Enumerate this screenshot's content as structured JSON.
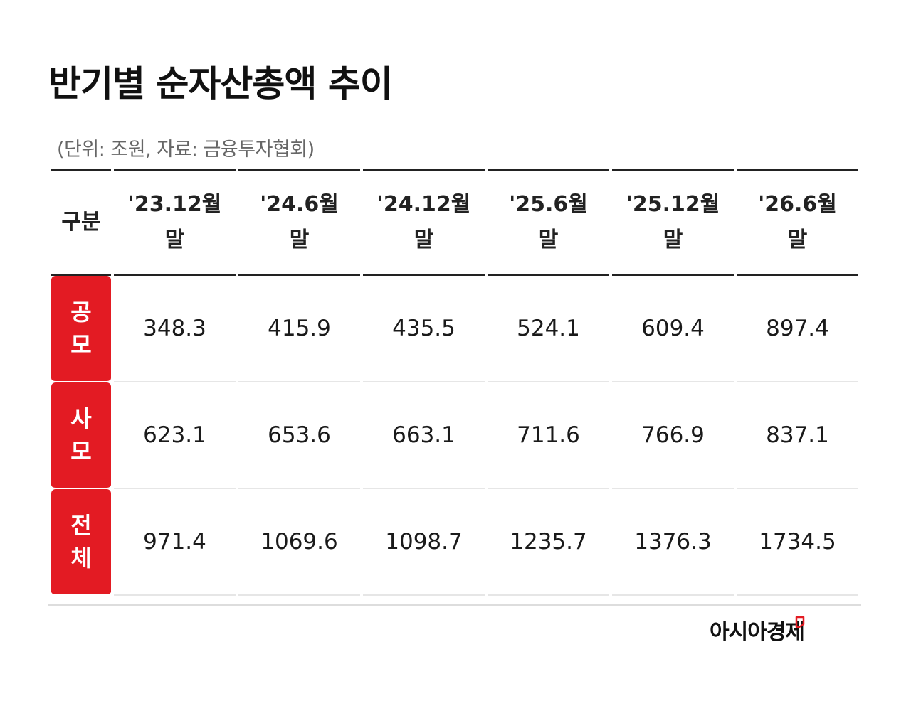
{
  "title": "반기별 순자산총액 추이",
  "unit_note": "(단위: 조원, 자료: 금융투자협회)",
  "colors": {
    "accent": "#e31b23",
    "text": "#111111",
    "muted": "#666666"
  },
  "brand": {
    "name": "아시아경제"
  },
  "chart_data": {
    "type": "table",
    "title": "반기별 순자산총액 추이",
    "corner_label": "구분",
    "columns": [
      {
        "line1": "'23.12월",
        "line2": "말"
      },
      {
        "line1": "'24.6월",
        "line2": "말"
      },
      {
        "line1": "'24.12월",
        "line2": "말"
      },
      {
        "line1": "'25.6월",
        "line2": "말"
      },
      {
        "line1": "'25.12월",
        "line2": "말"
      },
      {
        "line1": "'26.6월",
        "line2": "말"
      }
    ],
    "rows": [
      {
        "label_line1": "공",
        "label_line2": "모",
        "values": [
          "348.3",
          "415.9",
          "435.5",
          "524.1",
          "609.4",
          "897.4"
        ]
      },
      {
        "label_line1": "사",
        "label_line2": "모",
        "values": [
          "623.1",
          "653.6",
          "663.1",
          "711.6",
          "766.9",
          "837.1"
        ]
      },
      {
        "label_line1": "전",
        "label_line2": "체",
        "values": [
          "971.4",
          "1069.6",
          "1098.7",
          "1235.7",
          "1376.3",
          "1734.5"
        ]
      }
    ]
  }
}
